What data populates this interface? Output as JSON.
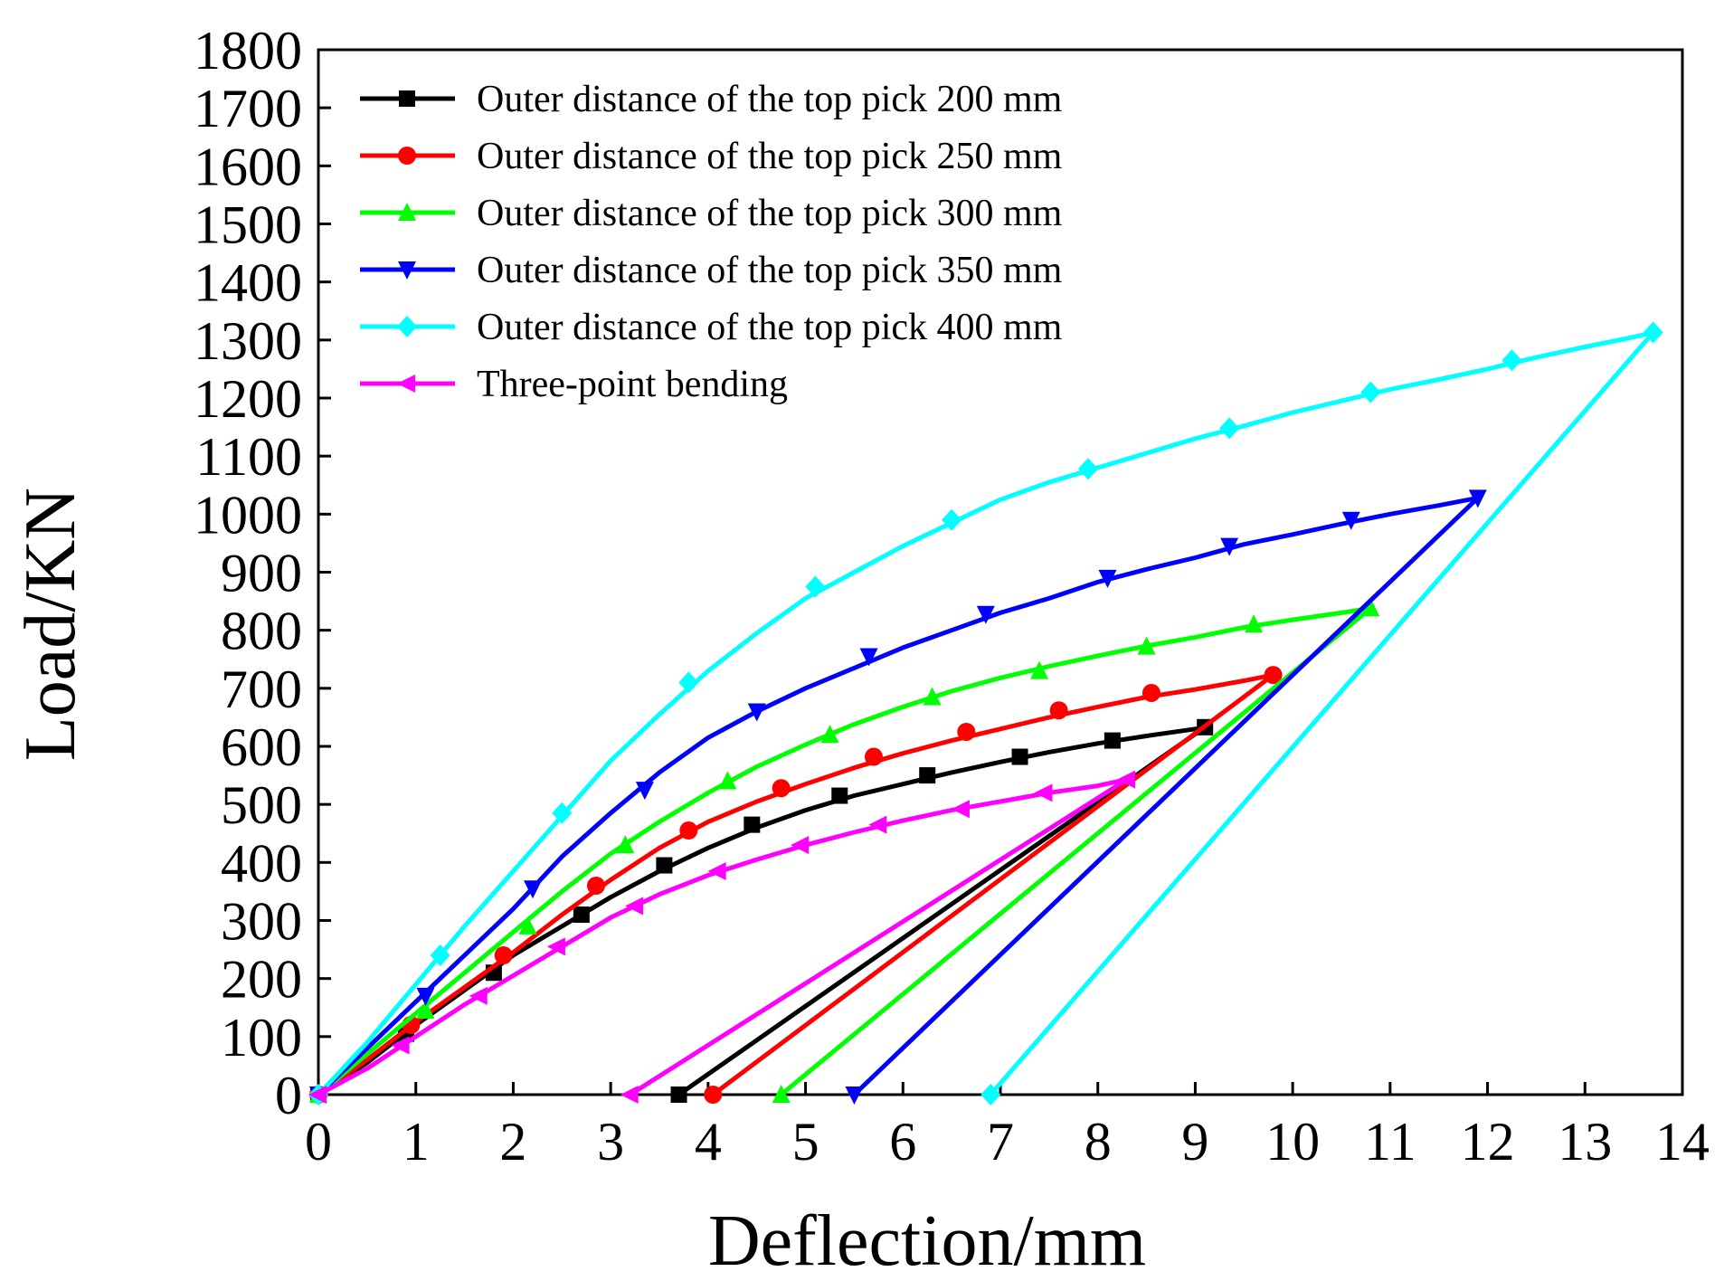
{
  "chart_data": {
    "type": "line",
    "title": "",
    "xlabel": "Deflection/mm",
    "ylabel": "Load/KN",
    "xlim": [
      0,
      14
    ],
    "ylim": [
      0,
      1800
    ],
    "xticks": [
      0,
      1,
      2,
      3,
      4,
      5,
      6,
      7,
      8,
      9,
      10,
      11,
      12,
      13,
      14
    ],
    "yticks": [
      0,
      100,
      200,
      300,
      400,
      500,
      600,
      700,
      800,
      900,
      1000,
      1100,
      1200,
      1300,
      1400,
      1500,
      1600,
      1700,
      1800
    ],
    "grid": false,
    "legend_position": "top-left",
    "series": [
      {
        "name": "Outer distance of the top pick 200 mm",
        "color": "#000000",
        "marker": "square",
        "curve": [
          [
            0,
            0
          ],
          [
            0.5,
            55
          ],
          [
            1.0,
            120
          ],
          [
            1.5,
            180
          ],
          [
            2.0,
            240
          ],
          [
            2.5,
            290
          ],
          [
            3.0,
            340
          ],
          [
            3.5,
            385
          ],
          [
            4.0,
            425
          ],
          [
            4.5,
            460
          ],
          [
            5.0,
            490
          ],
          [
            5.5,
            515
          ],
          [
            6.0,
            535
          ],
          [
            6.5,
            555
          ],
          [
            7.0,
            573
          ],
          [
            7.5,
            590
          ],
          [
            8.0,
            605
          ],
          [
            8.5,
            618
          ],
          [
            9.0,
            630
          ],
          [
            9.1,
            633
          ],
          [
            3.7,
            0
          ]
        ],
        "markers": [
          [
            0,
            0
          ],
          [
            0.9,
            105
          ],
          [
            1.8,
            210
          ],
          [
            2.7,
            310
          ],
          [
            3.55,
            395
          ],
          [
            4.45,
            465
          ],
          [
            5.35,
            515
          ],
          [
            6.25,
            550
          ],
          [
            7.2,
            582
          ],
          [
            8.15,
            610
          ],
          [
            9.1,
            633
          ],
          [
            3.7,
            0
          ]
        ]
      },
      {
        "name": "Outer distance of the top pick 250 mm",
        "color": "#ff0000",
        "marker": "circle",
        "curve": [
          [
            0,
            0
          ],
          [
            0.5,
            60
          ],
          [
            1.0,
            125
          ],
          [
            1.5,
            185
          ],
          [
            2.0,
            245
          ],
          [
            2.5,
            310
          ],
          [
            3.0,
            370
          ],
          [
            3.5,
            425
          ],
          [
            4.0,
            470
          ],
          [
            4.5,
            505
          ],
          [
            5.0,
            535
          ],
          [
            5.5,
            563
          ],
          [
            6.0,
            588
          ],
          [
            6.5,
            610
          ],
          [
            7.0,
            630
          ],
          [
            7.5,
            650
          ],
          [
            8.0,
            668
          ],
          [
            8.5,
            685
          ],
          [
            9.0,
            698
          ],
          [
            9.5,
            713
          ],
          [
            9.8,
            723
          ],
          [
            4.05,
            0
          ]
        ],
        "markers": [
          [
            0,
            0
          ],
          [
            0.95,
            120
          ],
          [
            1.9,
            240
          ],
          [
            2.85,
            360
          ],
          [
            3.8,
            455
          ],
          [
            4.75,
            528
          ],
          [
            5.7,
            582
          ],
          [
            6.65,
            625
          ],
          [
            7.6,
            662
          ],
          [
            8.55,
            692
          ],
          [
            9.8,
            723
          ],
          [
            4.05,
            0
          ]
        ]
      },
      {
        "name": "Outer distance of the top pick 300 mm",
        "color": "#00ff00",
        "marker": "triangle-up",
        "curve": [
          [
            0,
            0
          ],
          [
            0.5,
            70
          ],
          [
            1.0,
            140
          ],
          [
            1.5,
            210
          ],
          [
            2.0,
            280
          ],
          [
            2.5,
            350
          ],
          [
            3.0,
            415
          ],
          [
            3.5,
            470
          ],
          [
            4.0,
            520
          ],
          [
            4.5,
            565
          ],
          [
            5.0,
            603
          ],
          [
            5.5,
            638
          ],
          [
            6.0,
            668
          ],
          [
            6.5,
            695
          ],
          [
            7.0,
            718
          ],
          [
            7.5,
            738
          ],
          [
            8.0,
            756
          ],
          [
            8.5,
            773
          ],
          [
            9.0,
            788
          ],
          [
            9.5,
            805
          ],
          [
            10.0,
            818
          ],
          [
            10.5,
            830
          ],
          [
            10.8,
            838
          ],
          [
            4.75,
            0
          ]
        ],
        "markers": [
          [
            0,
            0
          ],
          [
            1.1,
            145
          ],
          [
            2.15,
            290
          ],
          [
            3.15,
            430
          ],
          [
            4.2,
            540
          ],
          [
            5.25,
            620
          ],
          [
            6.3,
            685
          ],
          [
            7.4,
            730
          ],
          [
            8.5,
            772
          ],
          [
            9.6,
            810
          ],
          [
            10.8,
            838
          ],
          [
            4.75,
            0
          ]
        ]
      },
      {
        "name": "Outer distance of the top pick 350 mm",
        "color": "#0000ff",
        "marker": "triangle-down",
        "curve": [
          [
            0,
            0
          ],
          [
            0.5,
            80
          ],
          [
            1.0,
            160
          ],
          [
            1.5,
            240
          ],
          [
            2.0,
            320
          ],
          [
            2.5,
            410
          ],
          [
            3.0,
            485
          ],
          [
            3.5,
            555
          ],
          [
            4.0,
            615
          ],
          [
            4.5,
            660
          ],
          [
            5.0,
            700
          ],
          [
            5.5,
            735
          ],
          [
            6.0,
            770
          ],
          [
            6.5,
            800
          ],
          [
            7.0,
            830
          ],
          [
            7.5,
            855
          ],
          [
            8.0,
            883
          ],
          [
            8.5,
            905
          ],
          [
            9.0,
            925
          ],
          [
            9.5,
            948
          ],
          [
            10.0,
            965
          ],
          [
            10.5,
            983
          ],
          [
            11.0,
            1000
          ],
          [
            11.5,
            1015
          ],
          [
            11.9,
            1028
          ],
          [
            5.5,
            0
          ]
        ],
        "markers": [
          [
            0,
            0
          ],
          [
            1.1,
            170
          ],
          [
            2.2,
            355
          ],
          [
            3.35,
            525
          ],
          [
            4.5,
            660
          ],
          [
            5.65,
            755
          ],
          [
            6.85,
            828
          ],
          [
            8.1,
            890
          ],
          [
            9.35,
            945
          ],
          [
            10.6,
            990
          ],
          [
            11.9,
            1028
          ],
          [
            5.5,
            0
          ]
        ]
      },
      {
        "name": "Outer distance of the top pick 400 mm",
        "color": "#00ffff",
        "marker": "diamond",
        "curve": [
          [
            0,
            0
          ],
          [
            0.5,
            90
          ],
          [
            1.0,
            190
          ],
          [
            1.5,
            290
          ],
          [
            2.0,
            385
          ],
          [
            2.5,
            480
          ],
          [
            3.0,
            575
          ],
          [
            3.5,
            655
          ],
          [
            4.0,
            730
          ],
          [
            4.5,
            795
          ],
          [
            5.0,
            855
          ],
          [
            5.5,
            900
          ],
          [
            6.0,
            945
          ],
          [
            6.5,
            985
          ],
          [
            7.0,
            1025
          ],
          [
            7.5,
            1055
          ],
          [
            8.0,
            1080
          ],
          [
            8.5,
            1105
          ],
          [
            9.0,
            1130
          ],
          [
            9.5,
            1152
          ],
          [
            10.0,
            1175
          ],
          [
            10.5,
            1195
          ],
          [
            11.0,
            1215
          ],
          [
            11.5,
            1232
          ],
          [
            12.0,
            1250
          ],
          [
            12.5,
            1270
          ],
          [
            13.0,
            1288
          ],
          [
            13.5,
            1305
          ],
          [
            13.7,
            1313
          ],
          [
            6.9,
            0
          ]
        ],
        "markers": [
          [
            0,
            0
          ],
          [
            1.25,
            240
          ],
          [
            2.5,
            485
          ],
          [
            3.8,
            710
          ],
          [
            5.1,
            875
          ],
          [
            6.5,
            990
          ],
          [
            7.9,
            1078
          ],
          [
            9.35,
            1148
          ],
          [
            10.8,
            1210
          ],
          [
            12.25,
            1265
          ],
          [
            13.7,
            1313
          ],
          [
            6.9,
            0
          ]
        ]
      },
      {
        "name": "Three-point bending",
        "color": "#ff00ff",
        "marker": "triangle-left",
        "curve": [
          [
            0,
            0
          ],
          [
            0.5,
            45
          ],
          [
            1.0,
            100
          ],
          [
            1.5,
            155
          ],
          [
            2.0,
            205
          ],
          [
            2.5,
            255
          ],
          [
            3.0,
            305
          ],
          [
            3.5,
            345
          ],
          [
            4.0,
            378
          ],
          [
            4.5,
            405
          ],
          [
            5.0,
            430
          ],
          [
            5.5,
            452
          ],
          [
            6.0,
            472
          ],
          [
            6.5,
            490
          ],
          [
            7.0,
            505
          ],
          [
            7.5,
            520
          ],
          [
            8.0,
            532
          ],
          [
            8.3,
            543
          ],
          [
            3.2,
            0
          ]
        ],
        "markers": [
          [
            0,
            0
          ],
          [
            0.85,
            85
          ],
          [
            1.65,
            170
          ],
          [
            2.45,
            255
          ],
          [
            3.25,
            325
          ],
          [
            4.1,
            385
          ],
          [
            4.95,
            430
          ],
          [
            5.75,
            465
          ],
          [
            6.6,
            492
          ],
          [
            7.45,
            520
          ],
          [
            8.3,
            543
          ],
          [
            3.2,
            0
          ]
        ]
      }
    ]
  }
}
